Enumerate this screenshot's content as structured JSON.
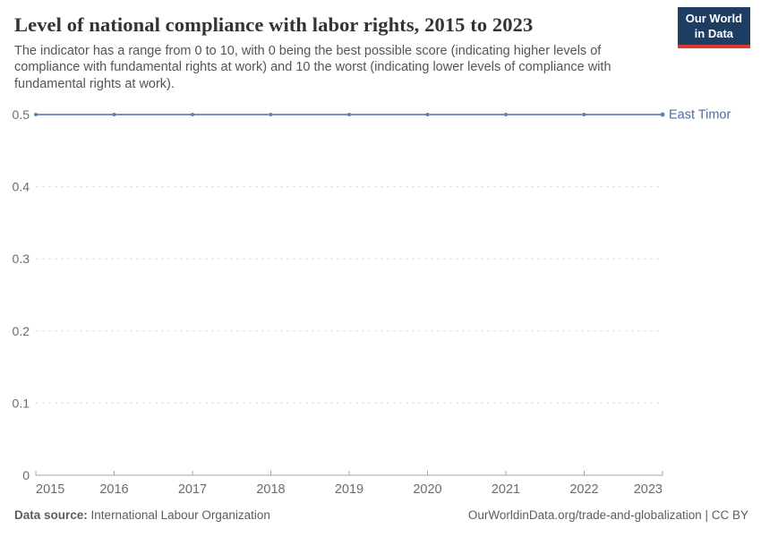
{
  "header": {
    "title": "Level of national compliance with labor rights, 2015 to 2023",
    "subtitle": "The indicator has a range from 0 to 10, with 0 being the best possible score (indicating higher levels of compliance with fundamental rights at work) and 10 the worst (indicating lower levels of compliance with fundamental rights at work)."
  },
  "logo": {
    "line1": "Our World",
    "line2": "in Data",
    "bg_color": "#1d3d63",
    "accent_color": "#d93a30"
  },
  "chart_data": {
    "type": "line",
    "title": "Level of national compliance with labor rights, 2015 to 2023",
    "xlabel": "",
    "ylabel": "",
    "x": [
      2015,
      2016,
      2017,
      2018,
      2019,
      2020,
      2021,
      2022,
      2023
    ],
    "xtick_labels": [
      "2015",
      "2016",
      "2017",
      "2018",
      "2019",
      "2020",
      "2021",
      "2022",
      "2023"
    ],
    "series": [
      {
        "name": "East Timor",
        "values": [
          0.5,
          0.5,
          0.5,
          0.5,
          0.5,
          0.5,
          0.5,
          0.5,
          0.5
        ],
        "color": "#6180b7",
        "label_color": "#4c6aa8"
      }
    ],
    "ylim": [
      0,
      0.5
    ],
    "yticks": [
      0,
      0.1,
      0.2,
      0.3,
      0.4,
      0.5
    ],
    "ytick_labels": [
      "0",
      "0.1",
      "0.2",
      "0.3",
      "0.4",
      "0.5"
    ],
    "grid": "horizontal-dashed",
    "legend_position": "inline-right-of-line",
    "grid_color": "#dcdcdc",
    "axis_color": "#a5a5a5",
    "tick_label_color": "#6b6b6b"
  },
  "footer": {
    "datasource_label": "Data source:",
    "datasource_value": "International Labour Organization",
    "rights": "OurWorldinData.org/trade-and-globalization | CC BY"
  }
}
